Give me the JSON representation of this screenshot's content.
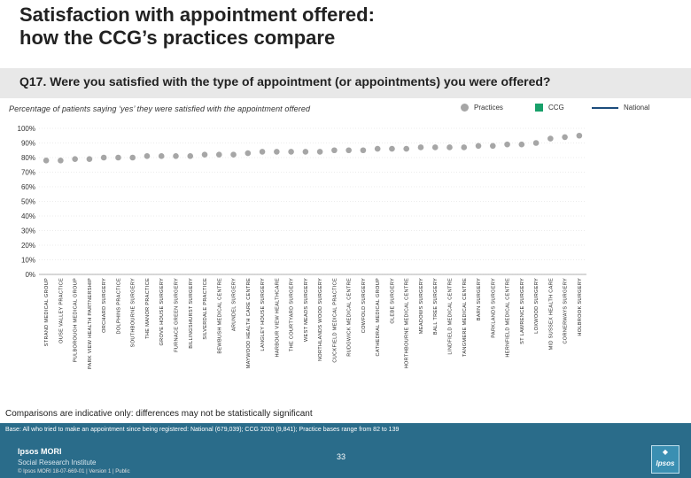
{
  "header": {
    "title_line1": "Satisfaction with appointment offered:",
    "title_line2": "how the CCG’s practices compare",
    "question": "Q17. Were you satisfied with the type of appointment (or appointments) you were offered?",
    "subtitle": "Percentage of patients saying ‘yes’ they were satisfied with the appointment offered"
  },
  "legend": {
    "practices": "Practices",
    "ccg": "CCG",
    "national": "National"
  },
  "colors": {
    "practice_marker": "#a6a6a6",
    "ccg": "#18a06a",
    "national": "#1c4c7c",
    "footer": "#2a6c8a"
  },
  "chart_data": {
    "type": "scatter",
    "ylim": [
      0,
      100
    ],
    "y_ticks": [
      "0%",
      "10%",
      "20%",
      "30%",
      "40%",
      "50%",
      "60%",
      "70%",
      "80%",
      "90%",
      "100%"
    ],
    "categories": [
      "STRAND MEDICAL GROUP",
      "OUSE VALLEY PRACTICE",
      "PULBOROUGH MEDICAL GROUP",
      "PARK VIEW HEALTH PARTNERSHIP",
      "ORCHARD SURGERY",
      "DOLPHINS PRACTICE",
      "SOUTHBOURNE SURGERY",
      "THE MANOR PRACTICE",
      "GROVE HOUSE SURGERY",
      "FURNACE GREEN SURGERY",
      "BILLINGSHURST SURGERY",
      "SILVERDALE PRACTICE",
      "BEWBUSH MEDICAL CENTRE",
      "ARUNDEL SURGERY",
      "MAYWOOD HEALTH CARE CENTRE",
      "LANGLEY HOUSE SURGERY",
      "HARBOUR VIEW HEALTHCARE",
      "THE COURTYARD SURGERY",
      "WEST MEADS SURGERY",
      "NORTHLANDS WOOD SURGERY",
      "CUCKFIELD MEDICAL PRACTICE",
      "RUDGWICK MEDICAL CENTRE",
      "COWFOLD SURGERY",
      "CATHEDRAL MEDICAL GROUP",
      "GLEBE SURGERY",
      "HORTHBOURNE MEDICAL CENTRE",
      "MEADOWS SURGERY",
      "BALL TREE SURGERY",
      "LINDFIELD MEDICAL CENTRE",
      "TANGMERE MEDICAL CENTRE",
      "BARN SURGERY",
      "PARKLANDS SURGERY",
      "HERNFIELD MEDICAL CENTRE",
      "ST LAWRENCE SURGERY",
      "LOXWOOD SURGERY",
      "MID SUSSEX HEALTH CARE",
      "CORNERWAYS SURGERY",
      "HOLBROOK SURGERY"
    ],
    "series": [
      {
        "name": "Practices",
        "values": [
          78,
          78,
          79,
          79,
          80,
          80,
          80,
          81,
          81,
          81,
          81,
          82,
          82,
          82,
          83,
          84,
          84,
          84,
          84,
          84,
          85,
          85,
          85,
          86,
          86,
          86,
          87,
          87,
          87,
          87,
          88,
          88,
          89,
          89,
          90,
          93,
          94,
          95
        ]
      }
    ]
  },
  "notes": {
    "comparisons": "Comparisons are indicative only: differences may not be statistically significant",
    "base": "Base: All who tried to make an appointment since being registered: National (679,039); CCG 2020 (9,841); Practice bases range from 82 to 139"
  },
  "footer": {
    "brand_line1": "Ipsos MORI",
    "brand_line2": "Social Research Institute",
    "copyright": "© Ipsos MORI     18-07-669-01 | Version 1 | Public",
    "page_number": "33",
    "logo_text": "Ipsos"
  }
}
